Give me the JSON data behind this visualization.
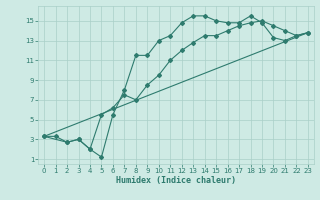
{
  "xlabel": "Humidex (Indice chaleur)",
  "background_color": "#ceeae4",
  "grid_color": "#aacfc8",
  "line_color": "#2e7b6e",
  "xlim": [
    -0.5,
    23.5
  ],
  "ylim": [
    0.5,
    16.5
  ],
  "xticks": [
    0,
    1,
    2,
    3,
    4,
    5,
    6,
    7,
    8,
    9,
    10,
    11,
    12,
    13,
    14,
    15,
    16,
    17,
    18,
    19,
    20,
    21,
    22,
    23
  ],
  "yticks": [
    1,
    3,
    5,
    7,
    9,
    11,
    13,
    15
  ],
  "line1_x": [
    0,
    1,
    2,
    3,
    4,
    5,
    6,
    7,
    8,
    9,
    10,
    11,
    12,
    13,
    14,
    15,
    16,
    17,
    18,
    19,
    20,
    21,
    22,
    23
  ],
  "line1_y": [
    3.3,
    3.3,
    2.7,
    3.0,
    2.0,
    1.2,
    5.5,
    8.0,
    11.5,
    11.5,
    13.0,
    13.5,
    14.8,
    15.5,
    15.5,
    15.0,
    14.8,
    14.8,
    15.5,
    14.8,
    13.3,
    13.0,
    13.5,
    13.8
  ],
  "line2_x": [
    0,
    2,
    3,
    4,
    5,
    6,
    7,
    8,
    9,
    10,
    11,
    12,
    13,
    14,
    15,
    16,
    17,
    18,
    19,
    20,
    21,
    22,
    23
  ],
  "line2_y": [
    3.3,
    2.7,
    3.0,
    2.0,
    5.5,
    6.2,
    7.5,
    7.0,
    8.5,
    9.5,
    11.0,
    12.0,
    12.8,
    13.5,
    13.5,
    14.0,
    14.5,
    14.8,
    15.0,
    14.5,
    14.0,
    13.5,
    13.8
  ],
  "line3_x": [
    0,
    23
  ],
  "line3_y": [
    3.3,
    13.8
  ]
}
